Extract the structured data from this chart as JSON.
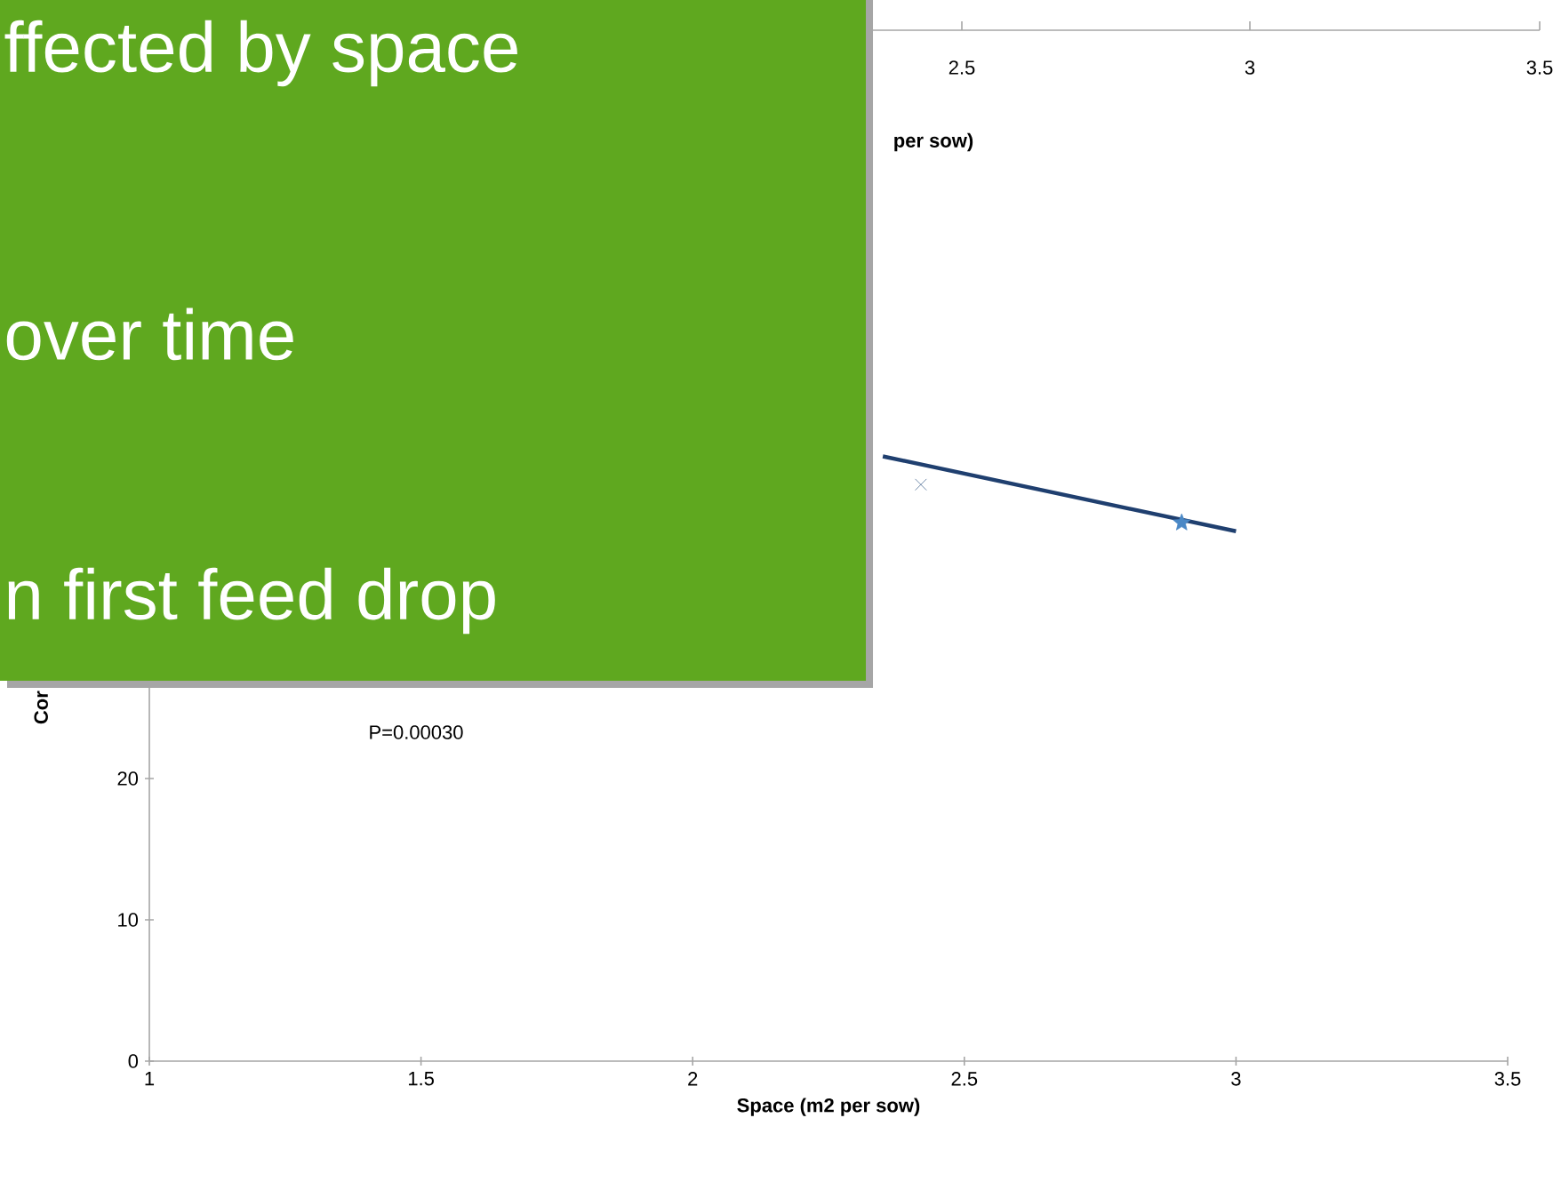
{
  "chart_data": [
    {
      "type": "other",
      "annotations": [
        "2.5",
        "3",
        "3.5",
        "per sow)"
      ]
    },
    {
      "type": "scatter",
      "xlabel": "Space  (m2 per sow)",
      "ylabel": "Cor",
      "xlim": [
        1,
        3.5
      ],
      "ylim": [
        0,
        60
      ],
      "xticks": [
        1,
        1.5,
        2,
        2.5,
        3,
        3.5
      ],
      "yticks": [
        0,
        10,
        20
      ],
      "annotations": [
        "ffected by space",
        "over time",
        "n first feed drop",
        "P=0.00030"
      ],
      "series": [
        {
          "marker": "cross",
          "color": "#4f6f95",
          "x": [
            2.42
          ],
          "values": [
            40.8
          ]
        },
        {
          "marker": "star",
          "color": "#4a88c6",
          "x": [
            2.9
          ],
          "values": [
            38.1
          ]
        },
        {
          "type": "line",
          "marker": "none",
          "color": "#1f3f6f",
          "x": [
            2.35,
            3.0
          ],
          "values": [
            42.8,
            37.5
          ]
        }
      ]
    }
  ]
}
